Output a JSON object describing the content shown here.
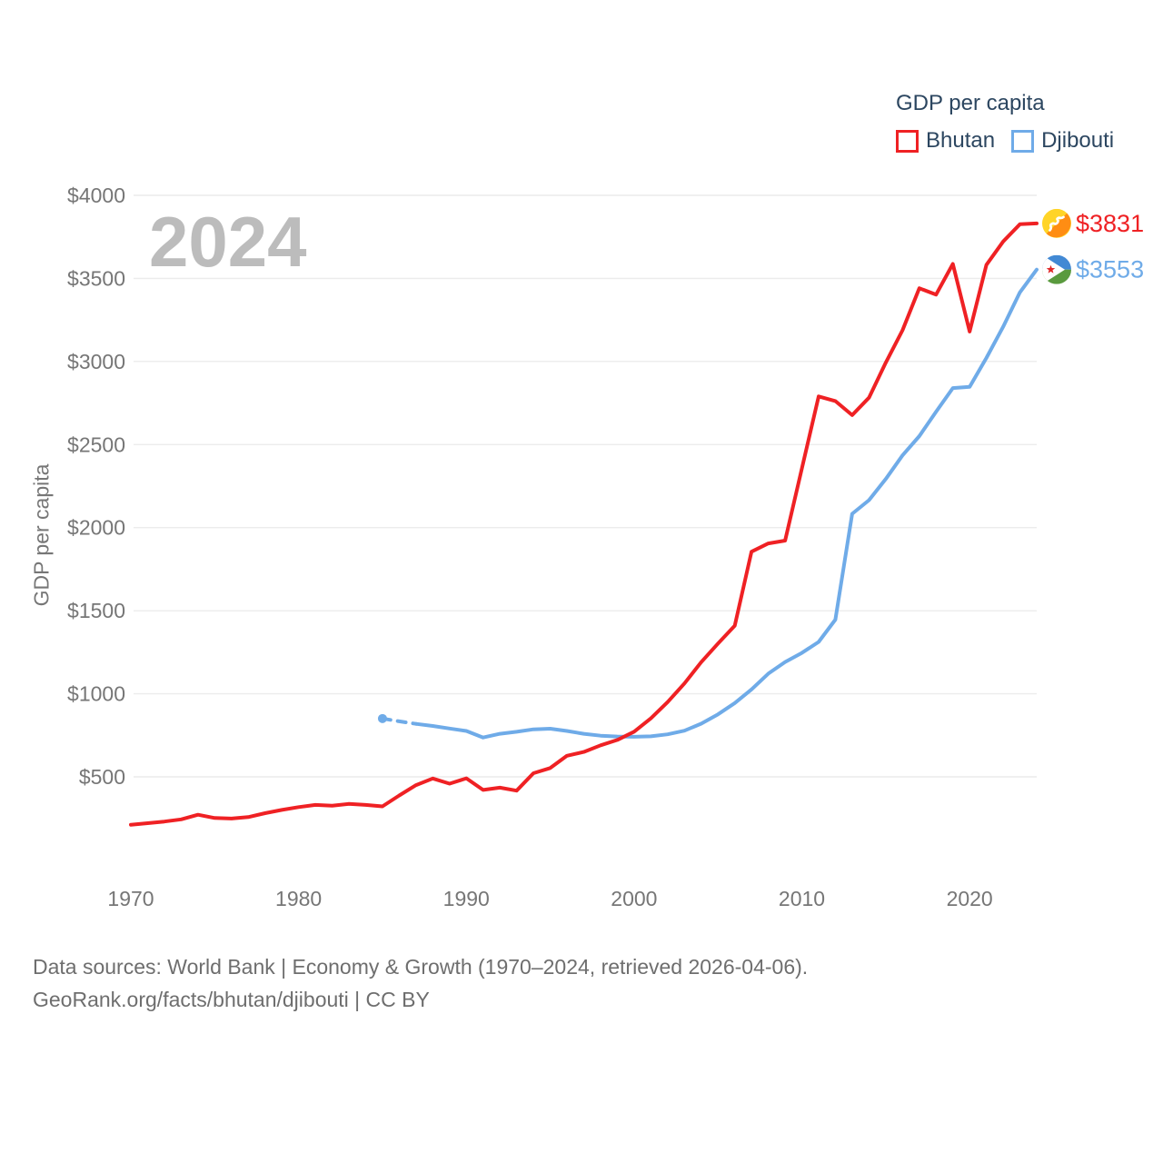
{
  "watermark": "2024",
  "legend": {
    "title": "GDP per capita",
    "items": [
      {
        "label": "Bhutan",
        "color": "#ef2124"
      },
      {
        "label": "Djibouti",
        "color": "#6fabe8"
      }
    ]
  },
  "footer": {
    "line1": "Data sources: World Bank | Economy & Growth (1970–2024, retrieved 2026-04-06).",
    "line2": "GeoRank.org/facts/bhutan/djibouti | CC BY"
  },
  "chart_data": {
    "type": "line",
    "title": "GDP per capita",
    "xlabel": "",
    "ylabel": "GDP per capita",
    "grid": "horizontal",
    "legend_position": "top-right",
    "xlim": [
      1968.5,
      2024.5
    ],
    "ylim": [
      0,
      4100
    ],
    "x_ticks": [
      {
        "value": 1970,
        "label": "1970"
      },
      {
        "value": 1980,
        "label": "1980"
      },
      {
        "value": 1990,
        "label": "1990"
      },
      {
        "value": 2000,
        "label": "2000"
      },
      {
        "value": 2010,
        "label": "2010"
      },
      {
        "value": 2020,
        "label": "2020"
      }
    ],
    "y_ticks": [
      {
        "value": 500,
        "label": "$500"
      },
      {
        "value": 1000,
        "label": "$1000"
      },
      {
        "value": 1500,
        "label": "$1500"
      },
      {
        "value": 2000,
        "label": "$2000"
      },
      {
        "value": 2500,
        "label": "$2500"
      },
      {
        "value": 3000,
        "label": "$3000"
      },
      {
        "value": 3500,
        "label": "$3500"
      },
      {
        "value": 4000,
        "label": "$4000"
      }
    ],
    "series": [
      {
        "name": "Bhutan",
        "color": "#ef2124",
        "flag_icon": "bhutan-flag-icon",
        "end_label": "$3831",
        "start_year": 1970,
        "values": [
          212,
          221,
          231,
          244,
          272,
          252,
          249,
          258,
          281,
          301,
          318,
          331,
          326,
          337,
          331,
          322,
          388,
          450,
          490,
          459,
          491,
          421,
          435,
          417,
          522,
          553,
          627,
          650,
          690,
          722,
          772,
          852,
          950,
          1062,
          1190,
          1302,
          1410,
          1855,
          1905,
          1922,
          2355,
          2790,
          2762,
          2677,
          2782,
          2992,
          3188,
          3441,
          3402,
          3587,
          3180,
          3581,
          3722,
          3826,
          3831
        ]
      },
      {
        "name": "Djibouti",
        "color": "#6fabe8",
        "flag_icon": "djibouti-flag-icon",
        "end_label": "$3553",
        "start_year": 1985,
        "dashed_until": 1987,
        "start_marker": true,
        "values": [
          851,
          834,
          819,
          806,
          791,
          776,
          737,
          759,
          771,
          786,
          790,
          776,
          759,
          748,
          743,
          741,
          744,
          756,
          778,
          820,
          876,
          944,
          1026,
          1121,
          1191,
          1246,
          1312,
          1446,
          2083,
          2165,
          2292,
          2435,
          2551,
          2697,
          2840,
          2848,
          3021,
          3209,
          3416,
          3553
        ]
      }
    ]
  }
}
